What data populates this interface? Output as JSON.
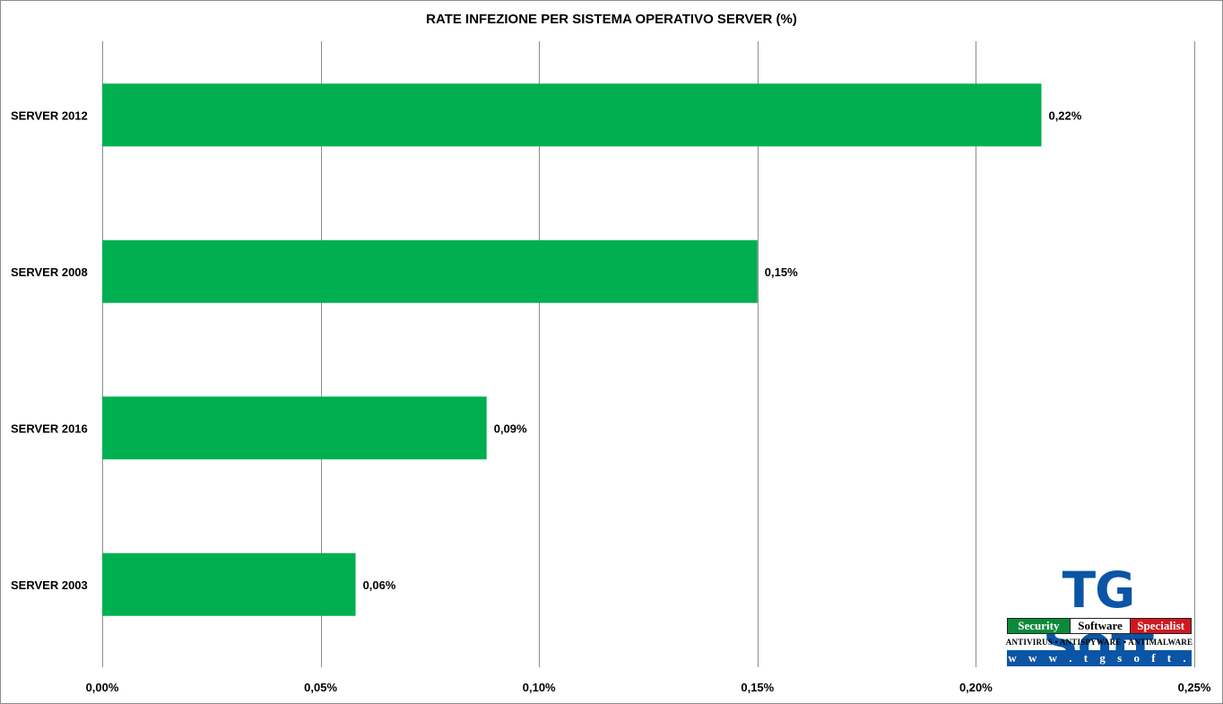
{
  "chart_data": {
    "type": "bar",
    "orientation": "horizontal",
    "title": "RATE INFEZIONE PER SISTEMA OPERATIVO SERVER (%)",
    "categories": [
      "SERVER 2012",
      "SERVER 2008",
      "SERVER 2016",
      "SERVER 2003"
    ],
    "values": [
      0.215,
      0.15,
      0.088,
      0.058
    ],
    "data_labels": [
      "0,22%",
      "0,15%",
      "0,09%",
      "0,06%"
    ],
    "xlim": [
      0,
      0.25
    ],
    "x_ticks": [
      0,
      0.05,
      0.1,
      0.15,
      0.2,
      0.25
    ],
    "x_tick_labels": [
      "0,00%",
      "0,05%",
      "0,10%",
      "0,15%",
      "0,20%",
      "0,25%"
    ],
    "grid": true,
    "bar_color": "#00b050",
    "grid_color": "#8c8c8c"
  },
  "logo": {
    "name": "TG Soft",
    "tagline": [
      "Security",
      "Software",
      "Specialist"
    ],
    "subtitle": "ANTIVIRUS • ANTISPYWARE • ANTIMALWARE",
    "url": "w w w . t g s o f t . i t",
    "colors": {
      "blue": "#0b55a6",
      "green": "#0c8a3a",
      "red": "#d0191f"
    }
  }
}
